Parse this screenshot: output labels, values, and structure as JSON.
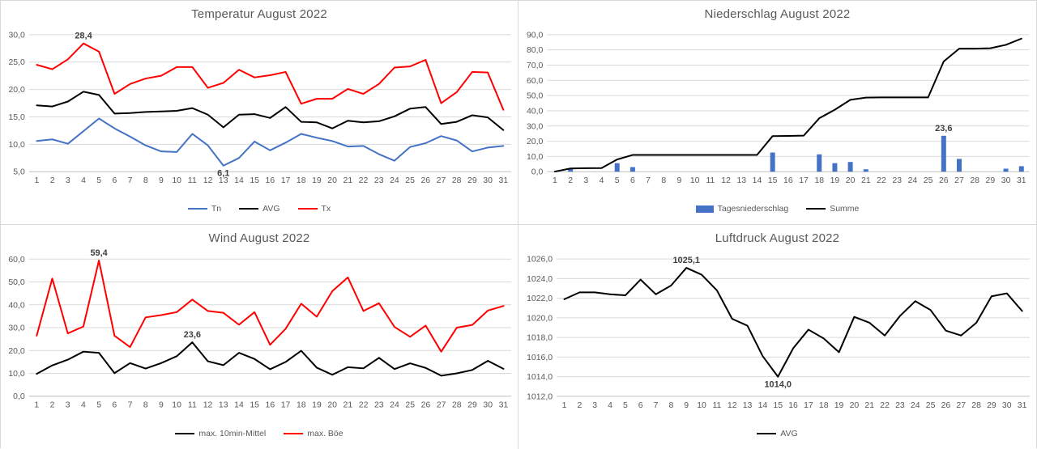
{
  "colors": {
    "series_blue": "#4472C4",
    "series_red": "#FF0000",
    "series_black": "#000000",
    "gridline": "#D9D9D9",
    "axis_line": "#BFBFBF",
    "tick_text": "#595959",
    "title_text": "#595959",
    "annotation_text": "#404040"
  },
  "chart_data": [
    {
      "type": "line",
      "title": "Temperatur August 2022",
      "xlabel": "",
      "ylabel": "",
      "ylim": [
        5,
        30
      ],
      "ystep": 5,
      "ytick_labels": [
        "5,0",
        "10,0",
        "15,0",
        "20,0",
        "25,0",
        "30,0"
      ],
      "grid": true,
      "legend_position": "bottom",
      "categories": [
        "1",
        "2",
        "3",
        "4",
        "5",
        "6",
        "7",
        "8",
        "9",
        "10",
        "11",
        "12",
        "13",
        "14",
        "15",
        "16",
        "17",
        "18",
        "19",
        "20",
        "21",
        "22",
        "23",
        "24",
        "25",
        "26",
        "27",
        "28",
        "29",
        "30",
        "31"
      ],
      "series": [
        {
          "name": "Tn",
          "type": "line",
          "color": "#4472C4",
          "values": [
            10.6,
            10.9,
            10.1,
            12.4,
            14.7,
            12.9,
            11.4,
            9.8,
            8.7,
            8.6,
            11.9,
            9.8,
            6.1,
            7.5,
            10.5,
            8.9,
            10.3,
            11.9,
            11.2,
            10.6,
            9.6,
            9.7,
            8.2,
            7.0,
            9.5,
            10.2,
            11.5,
            10.7,
            8.7,
            9.4,
            9.7
          ]
        },
        {
          "name": "AVG",
          "type": "line",
          "color": "#000000",
          "values": [
            17.1,
            16.9,
            17.8,
            19.6,
            19.0,
            15.6,
            15.7,
            15.9,
            16.0,
            16.1,
            16.6,
            15.4,
            13.1,
            15.4,
            15.5,
            14.8,
            16.8,
            14.1,
            14.0,
            12.9,
            14.3,
            14.0,
            14.2,
            15.1,
            16.5,
            16.8,
            13.7,
            14.1,
            15.3,
            14.9,
            12.6
          ]
        },
        {
          "name": "Tx",
          "type": "line",
          "color": "#FF0000",
          "values": [
            24.5,
            23.7,
            25.5,
            28.4,
            26.9,
            19.2,
            21.0,
            22.0,
            22.5,
            24.1,
            24.1,
            20.3,
            21.2,
            23.6,
            22.2,
            22.6,
            23.2,
            17.4,
            18.3,
            18.3,
            20.1,
            19.2,
            21.0,
            24.0,
            24.2,
            25.4,
            17.5,
            19.5,
            23.2,
            23.1,
            16.3
          ]
        }
      ],
      "annotations": [
        {
          "text": "28,4",
          "series": "Tx",
          "index": 3,
          "placement": "above"
        },
        {
          "text": "6,1",
          "series": "Tn",
          "index": 12,
          "placement": "below"
        }
      ]
    },
    {
      "type": "bar",
      "title": "Niederschlag August 2022",
      "xlabel": "",
      "ylabel": "",
      "ylim": [
        0,
        90
      ],
      "ystep": 10,
      "ytick_labels": [
        "0,0",
        "10,0",
        "20,0",
        "30,0",
        "40,0",
        "50,0",
        "60,0",
        "70,0",
        "80,0",
        "90,0"
      ],
      "grid": true,
      "legend_position": "bottom",
      "categories": [
        "1",
        "2",
        "3",
        "4",
        "5",
        "6",
        "7",
        "8",
        "9",
        "10",
        "11",
        "12",
        "13",
        "14",
        "15",
        "16",
        "17",
        "18",
        "19",
        "20",
        "21",
        "22",
        "23",
        "24",
        "25",
        "26",
        "27",
        "28",
        "29",
        "30",
        "31"
      ],
      "series": [
        {
          "name": "Tagesniederschlag",
          "type": "bar",
          "color": "#4472C4",
          "values": [
            0,
            2.0,
            0,
            0,
            5.6,
            3.0,
            0,
            0,
            0,
            0,
            0,
            0,
            0,
            0,
            12.6,
            0,
            0,
            11.4,
            5.6,
            6.4,
            1.6,
            0,
            0,
            0,
            0,
            23.6,
            8.4,
            0,
            0,
            2.0,
            3.6
          ]
        },
        {
          "name": "Summe",
          "type": "line",
          "color": "#000000",
          "values": [
            0.1,
            2.1,
            2.3,
            2.4,
            8.0,
            11.0,
            11.0,
            11.0,
            11.0,
            11.0,
            11.0,
            11.0,
            11.0,
            11.0,
            23.4,
            23.5,
            23.7,
            35.1,
            40.7,
            47.2,
            48.7,
            48.8,
            48.8,
            48.8,
            48.8,
            72.4,
            80.8,
            80.8,
            81.1,
            83.3,
            87.4
          ]
        }
      ],
      "annotations": [
        {
          "text": "23,6",
          "series": "Tagesniederschlag",
          "index": 25,
          "placement": "above"
        }
      ]
    },
    {
      "type": "line",
      "title": "Wind August 2022",
      "xlabel": "",
      "ylabel": "",
      "ylim": [
        0,
        60
      ],
      "ystep": 10,
      "ytick_labels": [
        "0,0",
        "10,0",
        "20,0",
        "30,0",
        "40,0",
        "50,0",
        "60,0"
      ],
      "grid": true,
      "legend_position": "bottom",
      "categories": [
        "1",
        "2",
        "3",
        "4",
        "5",
        "6",
        "7",
        "8",
        "9",
        "10",
        "11",
        "12",
        "13",
        "14",
        "15",
        "16",
        "17",
        "18",
        "19",
        "20",
        "21",
        "22",
        "23",
        "24",
        "25",
        "26",
        "27",
        "28",
        "29",
        "30",
        "31"
      ],
      "series": [
        {
          "name": "max. 10min-Mittel",
          "type": "line",
          "color": "#000000",
          "values": [
            9.8,
            13.5,
            16.0,
            19.5,
            19.0,
            10.1,
            14.5,
            12.1,
            14.5,
            17.5,
            23.6,
            15.3,
            13.6,
            19.0,
            16.3,
            11.8,
            15.0,
            19.9,
            12.5,
            9.4,
            12.7,
            12.2,
            16.8,
            11.9,
            14.4,
            12.4,
            9.0,
            10.0,
            11.5,
            15.5,
            12.0
          ]
        },
        {
          "name": "max. Böe",
          "type": "line",
          "color": "#FF0000",
          "values": [
            26.5,
            51.5,
            27.5,
            30.5,
            59.4,
            26.5,
            21.5,
            34.5,
            35.5,
            36.8,
            42.3,
            37.3,
            36.5,
            31.3,
            36.8,
            22.5,
            29.5,
            40.5,
            34.8,
            46.0,
            52.0,
            37.3,
            40.7,
            30.3,
            26.0,
            30.9,
            19.5,
            30.0,
            31.2,
            37.5,
            39.5
          ]
        }
      ],
      "annotations": [
        {
          "text": "59,4",
          "series": "max. Böe",
          "index": 4,
          "placement": "above"
        },
        {
          "text": "23,6",
          "series": "max. 10min-Mittel",
          "index": 10,
          "placement": "above"
        }
      ]
    },
    {
      "type": "line",
      "title": "Luftdruck August 2022",
      "xlabel": "",
      "ylabel": "",
      "ylim": [
        1012,
        1026
      ],
      "ystep": 2,
      "ytick_labels": [
        "1012,0",
        "1014,0",
        "1016,0",
        "1018,0",
        "1020,0",
        "1022,0",
        "1024,0",
        "1026,0"
      ],
      "grid": true,
      "legend_position": "bottom",
      "categories": [
        "1",
        "2",
        "3",
        "4",
        "5",
        "6",
        "7",
        "8",
        "9",
        "10",
        "11",
        "12",
        "13",
        "14",
        "15",
        "16",
        "17",
        "18",
        "19",
        "20",
        "21",
        "22",
        "23",
        "24",
        "25",
        "26",
        "27",
        "28",
        "29",
        "30",
        "31"
      ],
      "series": [
        {
          "name": "AVG",
          "type": "line",
          "color": "#000000",
          "values": [
            1021.9,
            1022.6,
            1022.6,
            1022.4,
            1022.3,
            1023.9,
            1022.4,
            1023.3,
            1025.1,
            1024.4,
            1022.8,
            1019.9,
            1019.2,
            1016.1,
            1014.0,
            1016.9,
            1018.8,
            1017.9,
            1016.5,
            1020.1,
            1019.5,
            1018.2,
            1020.2,
            1021.7,
            1020.8,
            1018.7,
            1018.2,
            1019.5,
            1022.2,
            1022.5,
            1020.7
          ]
        }
      ],
      "annotations": [
        {
          "text": "1025,1",
          "series": "AVG",
          "index": 8,
          "placement": "above"
        },
        {
          "text": "1014,0",
          "series": "AVG",
          "index": 14,
          "placement": "below"
        }
      ]
    }
  ]
}
